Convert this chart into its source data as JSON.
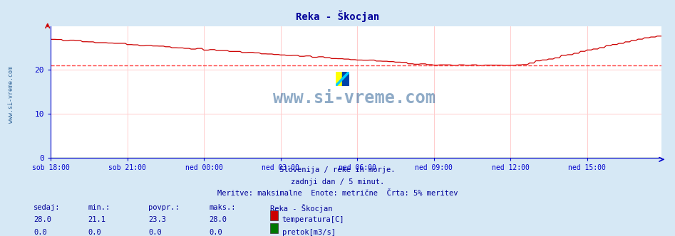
{
  "title": "Reka - Škocjan",
  "title_color": "#000099",
  "bg_color": "#d6e8f5",
  "plot_bg_color": "#ffffff",
  "grid_color": "#ffcccc",
  "axis_color": "#0000cc",
  "xticklabels": [
    "sob 18:00",
    "sob 21:00",
    "ned 00:00",
    "ned 03:00",
    "ned 06:00",
    "ned 09:00",
    "ned 12:00",
    "ned 15:00"
  ],
  "xtick_positions": [
    0,
    36,
    72,
    108,
    144,
    180,
    216,
    252
  ],
  "total_points": 288,
  "ylim": [
    0,
    30
  ],
  "yticks": [
    0,
    10,
    20
  ],
  "temp_color": "#cc0000",
  "pretok_color": "#007700",
  "avg_line_color": "#ff4444",
  "avg_line_value": 21.0,
  "watermark_text": "www.si-vreme.com",
  "watermark_color": "#336699",
  "sidebar_text": "www.si-vreme.com",
  "footer_line1": "Slovenija / reke in morje.",
  "footer_line2": "zadnji dan / 5 minut.",
  "footer_line3": "Meritve: maksimalne  Enote: metrične  Črta: 5% meritev",
  "footer_color": "#000099",
  "legend_title": "Reka - Škocjan",
  "legend_items": [
    "temperatura[C]",
    "pretok[m3/s]"
  ],
  "legend_colors": [
    "#cc0000",
    "#007700"
  ],
  "stat_labels": [
    "sedaj:",
    "min.:",
    "povpr.:",
    "maks.:"
  ],
  "temp_stats": [
    28.0,
    21.1,
    23.3,
    28.0
  ],
  "pretok_stats": [
    0.0,
    0.0,
    0.0,
    0.0
  ],
  "stat_color": "#000099"
}
